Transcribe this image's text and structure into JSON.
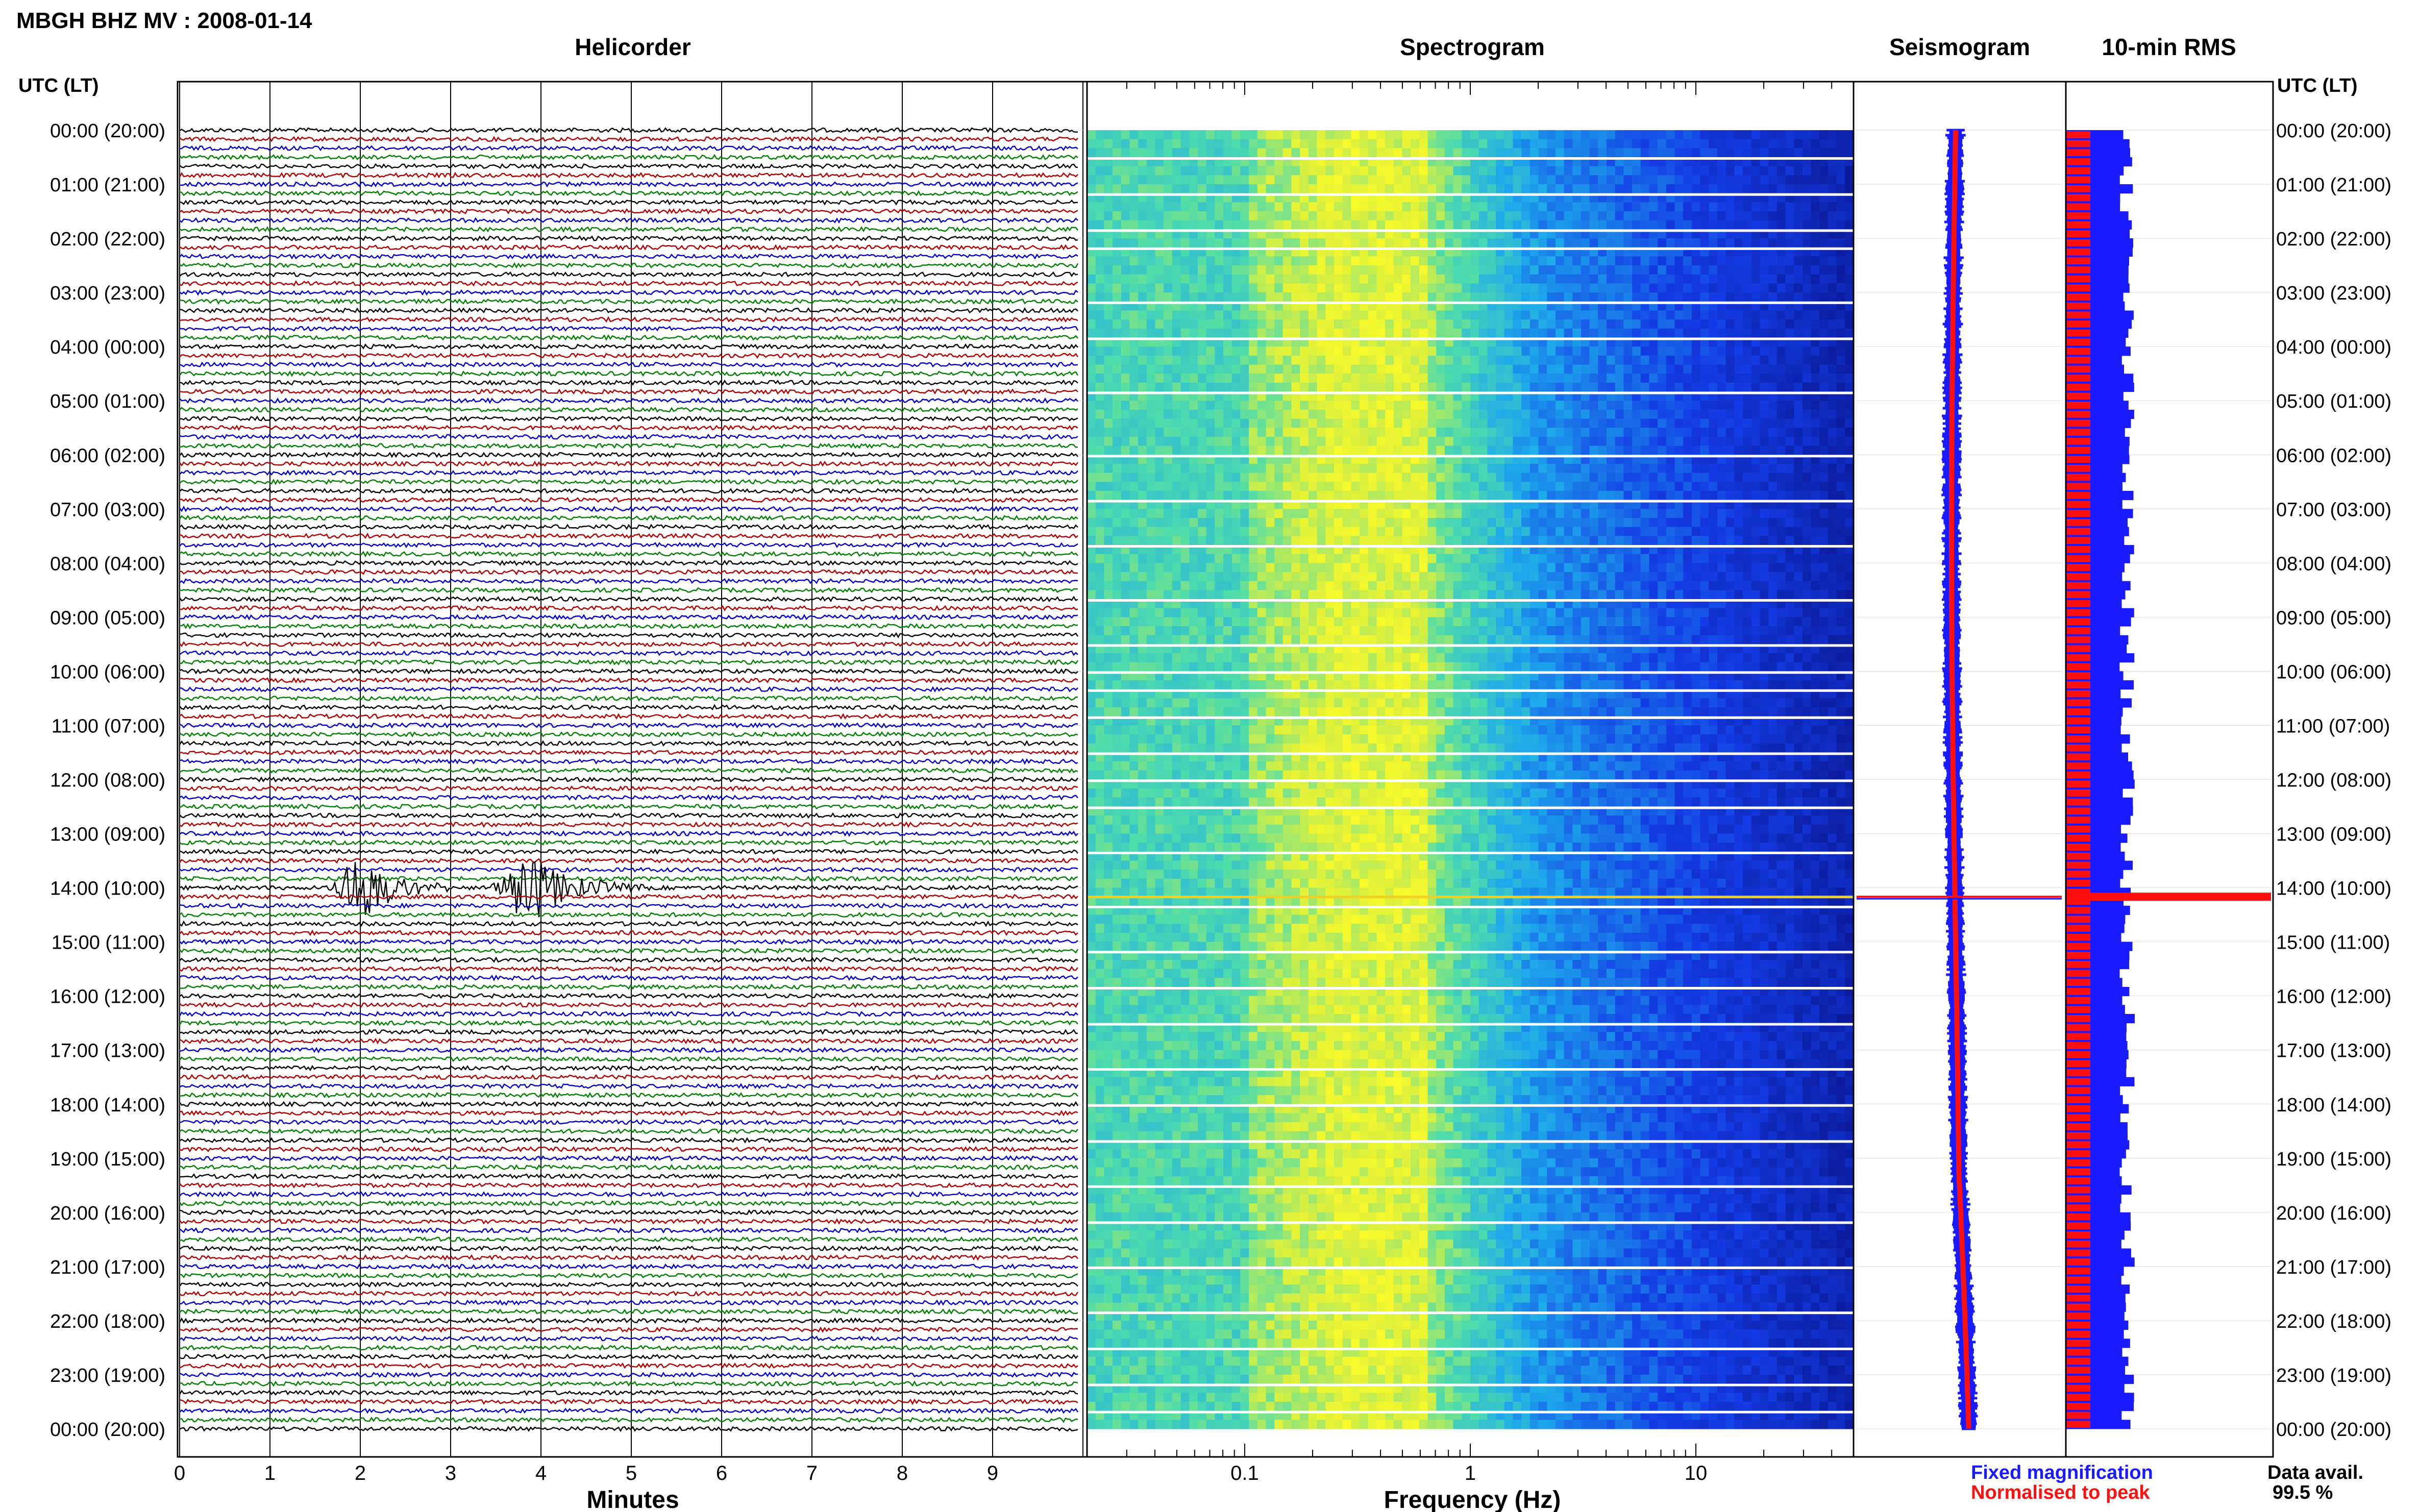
{
  "header": {
    "station_title": "MBGH BHZ MV : 2008-01-14",
    "utc_lt_left": "UTC (LT)",
    "utc_lt_right": "UTC (LT)"
  },
  "panels": {
    "helicorder_title": "Helicorder",
    "spectrogram_title": "Spectrogram",
    "seismogram_title": "Seismogram",
    "rms_title": "10-min RMS"
  },
  "axes": {
    "minutes_label": "Minutes",
    "frequency_label": "Frequency (Hz)",
    "minute_ticks": [
      "0",
      "1",
      "2",
      "3",
      "4",
      "5",
      "6",
      "7",
      "8",
      "9"
    ],
    "freq_ticks": [
      "0.1",
      "1",
      "10"
    ]
  },
  "legend": {
    "fixed_magnification": "Fixed magnification",
    "normalised_to_peak": "Normalised to peak",
    "fixed_color": "#1a1aff",
    "normalised_color": "#ff1010"
  },
  "data_avail": {
    "label": "Data avail.",
    "value": "99.5 %"
  },
  "time_labels": [
    "00:00 (20:00)",
    "01:00 (21:00)",
    "02:00 (22:00)",
    "03:00 (23:00)",
    "04:00 (00:00)",
    "05:00 (01:00)",
    "06:00 (02:00)",
    "07:00 (03:00)",
    "08:00 (04:00)",
    "09:00 (05:00)",
    "10:00 (06:00)",
    "11:00 (07:00)",
    "12:00 (08:00)",
    "13:00 (09:00)",
    "14:00 (10:00)",
    "15:00 (11:00)",
    "16:00 (12:00)",
    "17:00 (13:00)",
    "18:00 (14:00)",
    "19:00 (15:00)",
    "20:00 (16:00)",
    "21:00 (17:00)",
    "22:00 (18:00)",
    "23:00 (19:00)",
    "00:00 (20:00)"
  ],
  "chart_data": {
    "type": "helicorder+spectrogram+seismogram+rms",
    "trace_colors": [
      "#000000",
      "#b00000",
      "#0000c8",
      "#008000"
    ],
    "traces_per_hour": 6,
    "hours": 24,
    "minute_range": [
      0,
      10
    ],
    "freq_range_hz": [
      0.02,
      50
    ],
    "events": [
      {
        "row": 84,
        "start_min": 1.6,
        "end_min": 3.0,
        "peak_min": 2.0,
        "color": "#008000"
      },
      {
        "row": 84,
        "start_min": 3.4,
        "end_min": 5.2,
        "peak_min": 3.85,
        "color": "#008000"
      }
    ],
    "gap_rows": [
      3,
      7,
      11,
      13,
      19,
      23,
      29,
      36,
      41,
      46,
      52,
      57,
      60,
      62,
      65,
      69,
      72,
      75,
      80,
      86,
      91,
      95,
      99,
      104,
      108,
      112,
      117,
      121,
      126,
      131,
      135,
      139,
      142
    ]
  }
}
